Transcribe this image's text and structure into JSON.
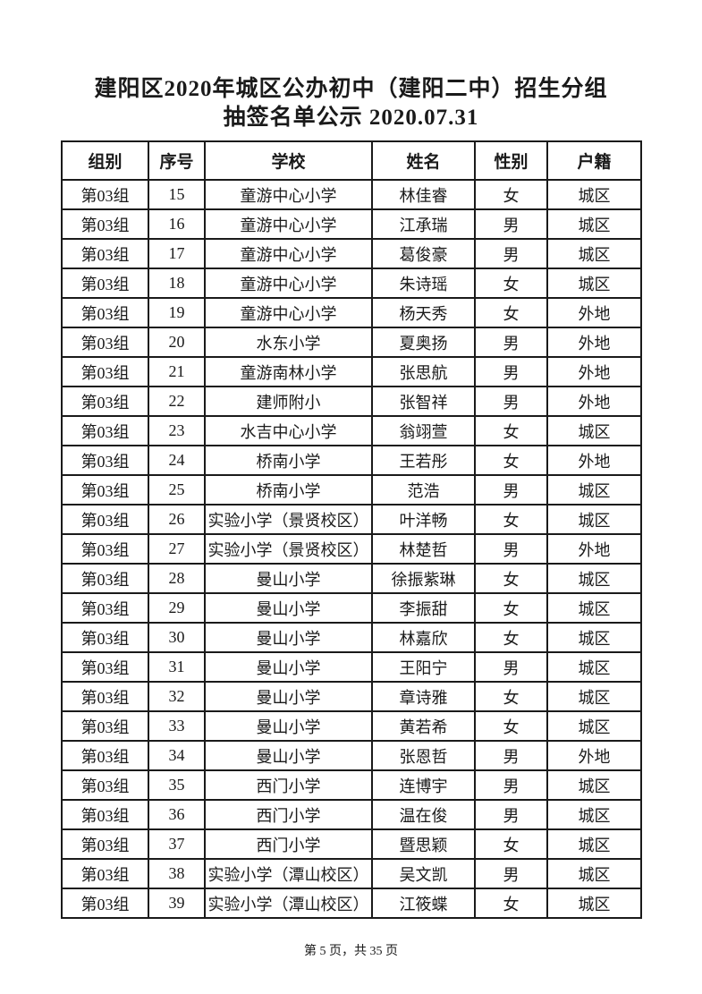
{
  "page": {
    "title_line1": "建阳区2020年城区公办初中（建阳二中）招生分组",
    "title_line2": "抽签名单公示 2020.07.31",
    "footer": "第 5 页，共 35 页"
  },
  "colors": {
    "text": "#1a1a1a",
    "border": "#1a1a1a",
    "background": "#ffffff"
  },
  "table": {
    "headers": [
      "组别",
      "序号",
      "学校",
      "姓名",
      "性别",
      "户籍"
    ],
    "rows": [
      [
        "第03组",
        "15",
        "童游中心小学",
        "林佳睿",
        "女",
        "城区"
      ],
      [
        "第03组",
        "16",
        "童游中心小学",
        "江承瑞",
        "男",
        "城区"
      ],
      [
        "第03组",
        "17",
        "童游中心小学",
        "葛俊豪",
        "男",
        "城区"
      ],
      [
        "第03组",
        "18",
        "童游中心小学",
        "朱诗瑶",
        "女",
        "城区"
      ],
      [
        "第03组",
        "19",
        "童游中心小学",
        "杨天秀",
        "女",
        "外地"
      ],
      [
        "第03组",
        "20",
        "水东小学",
        "夏奥扬",
        "男",
        "外地"
      ],
      [
        "第03组",
        "21",
        "童游南林小学",
        "张思航",
        "男",
        "外地"
      ],
      [
        "第03组",
        "22",
        "建师附小",
        "张智祥",
        "男",
        "外地"
      ],
      [
        "第03组",
        "23",
        "水吉中心小学",
        "翁翊萱",
        "女",
        "城区"
      ],
      [
        "第03组",
        "24",
        "桥南小学",
        "王若彤",
        "女",
        "外地"
      ],
      [
        "第03组",
        "25",
        "桥南小学",
        "范浩",
        "男",
        "城区"
      ],
      [
        "第03组",
        "26",
        "实验小学（景贤校区）",
        "叶洋畅",
        "女",
        "城区"
      ],
      [
        "第03组",
        "27",
        "实验小学（景贤校区）",
        "林楚哲",
        "男",
        "外地"
      ],
      [
        "第03组",
        "28",
        "曼山小学",
        "徐振紫琳",
        "女",
        "城区"
      ],
      [
        "第03组",
        "29",
        "曼山小学",
        "李振甜",
        "女",
        "城区"
      ],
      [
        "第03组",
        "30",
        "曼山小学",
        "林嘉欣",
        "女",
        "城区"
      ],
      [
        "第03组",
        "31",
        "曼山小学",
        "王阳宁",
        "男",
        "城区"
      ],
      [
        "第03组",
        "32",
        "曼山小学",
        "章诗雅",
        "女",
        "城区"
      ],
      [
        "第03组",
        "33",
        "曼山小学",
        "黄若希",
        "女",
        "城区"
      ],
      [
        "第03组",
        "34",
        "曼山小学",
        "张恩哲",
        "男",
        "外地"
      ],
      [
        "第03组",
        "35",
        "西门小学",
        "连博宇",
        "男",
        "城区"
      ],
      [
        "第03组",
        "36",
        "西门小学",
        "温在俊",
        "男",
        "城区"
      ],
      [
        "第03组",
        "37",
        "西门小学",
        "暨思颖",
        "女",
        "城区"
      ],
      [
        "第03组",
        "38",
        "实验小学（潭山校区）",
        "吴文凯",
        "男",
        "城区"
      ],
      [
        "第03组",
        "39",
        "实验小学（潭山校区）",
        "江筱蝶",
        "女",
        "城区"
      ]
    ]
  }
}
